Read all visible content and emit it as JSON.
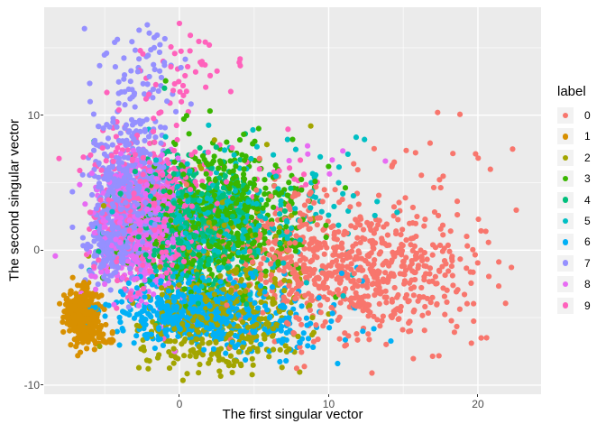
{
  "figure": {
    "background": "#FFFFFF",
    "panel_background": "#EBEBEB",
    "grid_color": "#FFFFFF",
    "axis_text_color": "#4D4D4D",
    "legend_key_background": "#F2F2F2"
  },
  "axes": {
    "x": {
      "title": "The first singular vector",
      "tick_labels": [
        "0",
        "10",
        "20"
      ],
      "tick_values": [
        0,
        10,
        20
      ],
      "minor_values": [
        -5,
        5,
        15
      ]
    },
    "y": {
      "title": "The second singular vector",
      "tick_labels": [
        "10",
        "0",
        "-10"
      ],
      "tick_values": [
        10,
        0,
        -10
      ],
      "minor_values": [
        15,
        5,
        -5
      ]
    }
  },
  "legend": {
    "title": "label",
    "entries": [
      {
        "label": "0",
        "color": "#F8766D"
      },
      {
        "label": "1",
        "color": "#D89000"
      },
      {
        "label": "2",
        "color": "#A3A500"
      },
      {
        "label": "3",
        "color": "#39B600"
      },
      {
        "label": "4",
        "color": "#00BF7D"
      },
      {
        "label": "5",
        "color": "#00BFC4"
      },
      {
        "label": "6",
        "color": "#00B0F6"
      },
      {
        "label": "7",
        "color": "#9590FF"
      },
      {
        "label": "8",
        "color": "#E76BF3"
      },
      {
        "label": "9",
        "color": "#FF62BC"
      }
    ]
  },
  "chart_data": {
    "type": "scatter",
    "title": "",
    "xlabel": "The first singular vector",
    "ylabel": "The second singular vector",
    "xlim": [
      -9.06,
      24.23
    ],
    "ylim": [
      -10.67,
      18.0
    ],
    "grid": true,
    "legend_title": "label",
    "legend_position": "right",
    "point_radius_px": 3.1,
    "render_seed": 11,
    "series": [
      {
        "name": "0",
        "color": "#F8766D",
        "clusters": [
          {
            "cx": 13.0,
            "cy": -1.5,
            "sx": 3.3,
            "sy": 2.5,
            "n": 540
          },
          {
            "cx": 6.5,
            "cy": 0.0,
            "sx": 2.5,
            "sy": 2.8,
            "n": 260
          },
          {
            "cx": 16.0,
            "cy": 6.5,
            "sx": 2.8,
            "sy": 1.2,
            "n": 14
          }
        ]
      },
      {
        "name": "1",
        "color": "#D89000",
        "clusters": [
          {
            "cx": -6.55,
            "cy": -4.7,
            "sx": 0.55,
            "sy": 0.95,
            "n": 430
          },
          {
            "cx": -5.3,
            "cy": -6.3,
            "sx": 0.65,
            "sy": 0.45,
            "n": 28
          }
        ]
      },
      {
        "name": "2",
        "color": "#A3A500",
        "clusters": [
          {
            "cx": 2.9,
            "cy": -5.0,
            "sx": 2.5,
            "sy": 1.7,
            "n": 470
          },
          {
            "cx": 3.0,
            "cy": 0.5,
            "sx": 2.8,
            "sy": 2.6,
            "n": 90
          },
          {
            "cx": 2.0,
            "cy": -8.0,
            "sx": 2.2,
            "sy": 0.7,
            "n": 30
          }
        ]
      },
      {
        "name": "3",
        "color": "#39B600",
        "clusters": [
          {
            "cx": 2.8,
            "cy": 2.6,
            "sx": 2.7,
            "sy": 2.6,
            "n": 560
          },
          {
            "cx": 0.8,
            "cy": 0.5,
            "sx": 2.0,
            "sy": 2.0,
            "n": 100
          }
        ]
      },
      {
        "name": "4",
        "color": "#00BF7D",
        "clusters": [
          {
            "cx": 0.8,
            "cy": 2.0,
            "sx": 2.2,
            "sy": 2.4,
            "n": 460
          }
        ]
      },
      {
        "name": "5",
        "color": "#00BFC4",
        "clusters": [
          {
            "cx": 2.3,
            "cy": 2.0,
            "sx": 2.6,
            "sy": 2.2,
            "n": 400
          },
          {
            "cx": 9.5,
            "cy": 2.0,
            "sx": 2.8,
            "sy": 2.6,
            "n": 45
          }
        ]
      },
      {
        "name": "6",
        "color": "#00B0F6",
        "clusters": [
          {
            "cx": 0.6,
            "cy": -4.4,
            "sx": 2.3,
            "sy": 1.15,
            "n": 470
          },
          {
            "cx": 4.8,
            "cy": -5.3,
            "sx": 2.8,
            "sy": 1.4,
            "n": 160
          },
          {
            "cx": 12.0,
            "cy": -4.0,
            "sx": 1.8,
            "sy": 1.8,
            "n": 10
          }
        ]
      },
      {
        "name": "7",
        "color": "#9590FF",
        "clusters": [
          {
            "cx": -3.4,
            "cy": 4.5,
            "sx": 1.15,
            "sy": 2.8,
            "n": 500
          },
          {
            "cx": -4.6,
            "cy": 0.5,
            "sx": 0.8,
            "sy": 1.6,
            "n": 150
          },
          {
            "cx": -2.5,
            "cy": 12.5,
            "sx": 1.4,
            "sy": 2.0,
            "n": 70
          }
        ]
      },
      {
        "name": "8",
        "color": "#E76BF3",
        "clusters": [
          {
            "cx": -2.2,
            "cy": 1.5,
            "sx": 1.6,
            "sy": 2.5,
            "n": 500
          },
          {
            "cx": 9.8,
            "cy": 6.8,
            "sx": 2.0,
            "sy": 0.5,
            "n": 6
          }
        ]
      },
      {
        "name": "9",
        "color": "#FF62BC",
        "clusters": [
          {
            "cx": -1.8,
            "cy": 3.0,
            "sx": 1.9,
            "sy": 2.9,
            "n": 480
          },
          {
            "cx": 0.8,
            "cy": 13.5,
            "sx": 1.7,
            "sy": 1.6,
            "n": 40
          },
          {
            "cx": 6.5,
            "cy": 5.5,
            "sx": 2.0,
            "sy": 1.2,
            "n": 20
          }
        ]
      }
    ],
    "outlier_points": [
      {
        "label": "0",
        "x": 17.3,
        "y": 10.2
      },
      {
        "label": "0",
        "x": 12.9,
        "y": -9.1
      },
      {
        "label": "9",
        "x": 0.0,
        "y": 16.8
      },
      {
        "label": "7",
        "x": -2.7,
        "y": 16.3
      },
      {
        "label": "9",
        "x": 2.0,
        "y": 15.2
      },
      {
        "label": "8",
        "x": 13.8,
        "y": 6.6
      },
      {
        "label": "5",
        "x": 12.4,
        "y": 8.2
      },
      {
        "label": "4",
        "x": -1.0,
        "y": 12.0
      },
      {
        "label": "2",
        "x": 8.8,
        "y": 9.2
      },
      {
        "label": "6",
        "x": 10.6,
        "y": -8.4
      }
    ]
  }
}
